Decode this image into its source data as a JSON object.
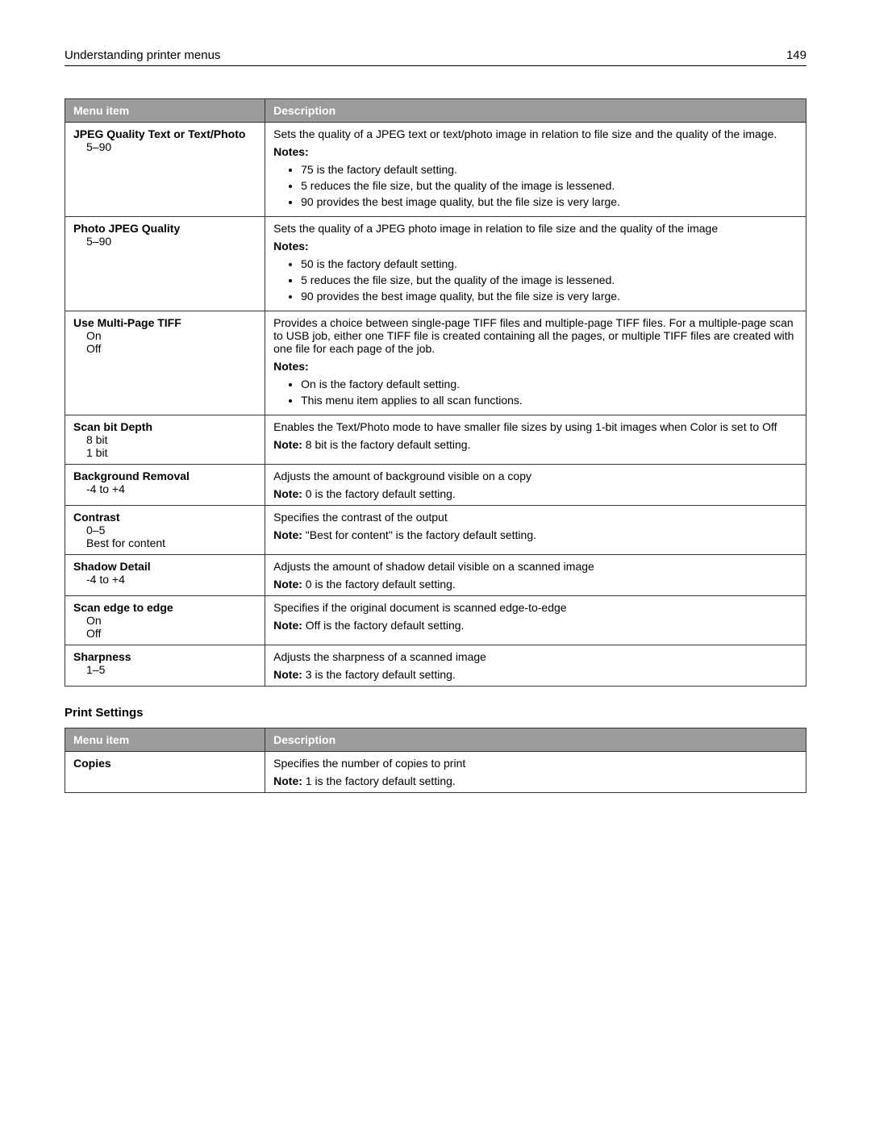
{
  "header": {
    "title": "Understanding printer menus",
    "page": "149"
  },
  "table1": {
    "col_menu": "Menu item",
    "col_desc": "Description",
    "rows": [
      {
        "menu_title": "JPEG Quality Text or Text/Photo",
        "menu_opt1": "5–90",
        "desc_intro": "Sets the quality of a JPEG text or text/photo image in relation to file size and the quality of the image.",
        "notes_label": "Notes:",
        "b1": "75 is the factory default setting.",
        "b2": "5 reduces the file size, but the quality of the image is lessened.",
        "b3": "90 provides the best image quality, but the file size is very large."
      },
      {
        "menu_title": "Photo JPEG Quality",
        "menu_opt1": "5–90",
        "desc_intro": "Sets the quality of a JPEG photo image in relation to file size and the quality of the image",
        "notes_label": "Notes:",
        "b1": "50 is the factory default setting.",
        "b2": "5 reduces the file size, but the quality of the image is lessened.",
        "b3": "90 provides the best image quality, but the file size is very large."
      },
      {
        "menu_title": "Use Multi‑Page TIFF",
        "menu_opt1": "On",
        "menu_opt2": "Off",
        "desc_intro": "Provides a choice between single-page TIFF files and multiple‑page TIFF files. For a multiple-page scan to USB job, either one TIFF file is created containing all the pages, or multiple TIFF files are created with one file for each page of the job.",
        "notes_label": "Notes:",
        "b1": "On is the factory default setting.",
        "b2": "This menu item applies to all scan functions."
      },
      {
        "menu_title": "Scan bit Depth",
        "menu_opt1": "8 bit",
        "menu_opt2": "1 bit",
        "desc_intro": "Enables the Text/Photo mode to have smaller file sizes by using 1‑bit images when Color is set to Off",
        "note_bold": "Note:",
        "note_text": " 8 bit is the factory default setting."
      },
      {
        "menu_title": "Background Removal",
        "menu_opt1": "‑4 to +4",
        "desc_intro": "Adjusts the amount of background visible on a copy",
        "note_bold": "Note:",
        "note_text": " 0 is the factory default setting."
      },
      {
        "menu_title": "Contrast",
        "menu_opt1": "0–5",
        "menu_opt2": "Best for content",
        "desc_intro": "Specifies the contrast of the output",
        "note_bold": "Note:",
        "note_text": " \"Best for content\" is the factory default setting."
      },
      {
        "menu_title": "Shadow Detail",
        "menu_opt1": "‑4 to +4",
        "desc_intro": "Adjusts the amount of shadow detail visible on a scanned image",
        "note_bold": "Note:",
        "note_text": " 0 is the factory default setting."
      },
      {
        "menu_title": "Scan edge to edge",
        "menu_opt1": "On",
        "menu_opt2": "Off",
        "desc_intro": "Specifies if the original document is scanned edge-to-edge",
        "note_bold": "Note:",
        "note_text": " Off is the factory default setting."
      },
      {
        "menu_title": "Sharpness",
        "menu_opt1": "1–5",
        "desc_intro": "Adjusts the sharpness of a scanned image",
        "note_bold": "Note:",
        "note_text": " 3 is the factory default setting."
      }
    ]
  },
  "section2_title": "Print Settings",
  "table2": {
    "col_menu": "Menu item",
    "col_desc": "Description",
    "rows": [
      {
        "menu_title": "Copies",
        "desc_intro": "Specifies the number of copies to print",
        "note_bold": "Note:",
        "note_text": " 1 is the factory default setting."
      }
    ]
  }
}
